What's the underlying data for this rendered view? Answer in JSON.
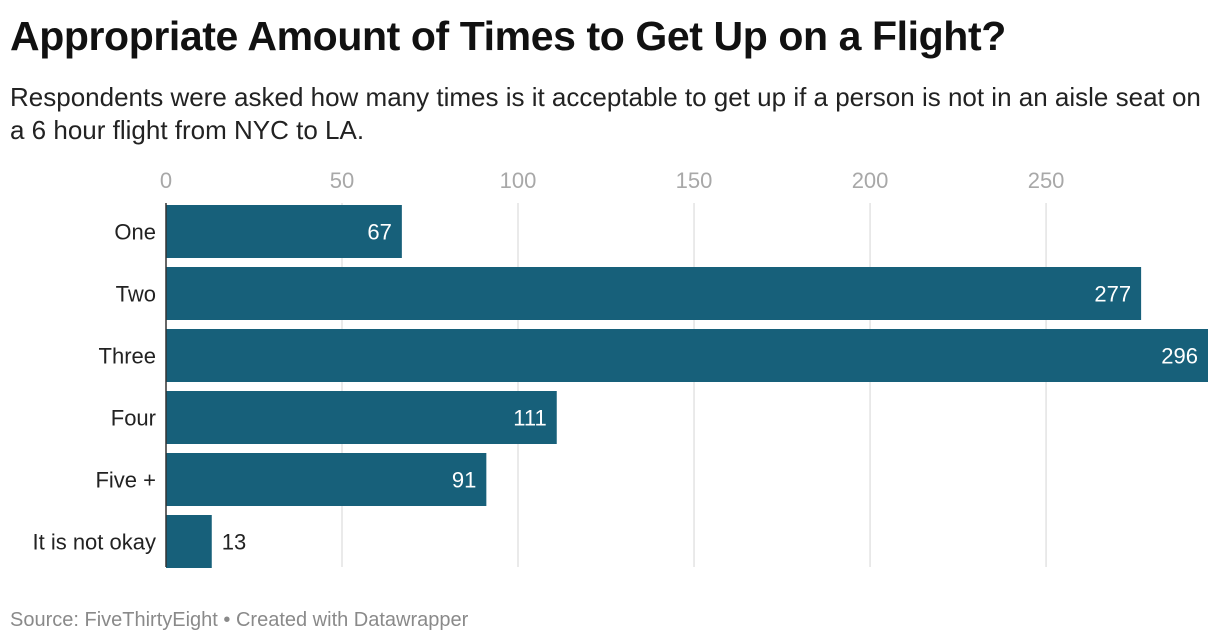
{
  "header": {
    "title": "Appropriate Amount of Times to Get Up on a Flight?",
    "subtitle": "Respondents were asked how many times is it acceptable to get up if a person is not in an aisle seat on a 6 hour flight from NYC to LA."
  },
  "footer": {
    "source": "Source: FiveThirtyEight • Created with Datawrapper"
  },
  "colors": {
    "bar": "#17607a",
    "grid": "#e3e3e3",
    "axis": "#333333",
    "label_inside": "#ffffff",
    "label_outside": "#222222"
  },
  "chart_data": {
    "type": "bar",
    "orientation": "horizontal",
    "categories": [
      "One",
      "Two",
      "Three",
      "Four",
      "Five +",
      "It is not okay"
    ],
    "values": [
      67,
      277,
      296,
      111,
      91,
      13
    ],
    "xlim": [
      0,
      296
    ],
    "xticks": [
      0,
      50,
      100,
      150,
      200,
      250
    ],
    "xtick_labels": [
      "0",
      "50",
      "100",
      "150",
      "200",
      "250"
    ],
    "x_axis_position": "top",
    "grid": true,
    "data_labels": true
  }
}
